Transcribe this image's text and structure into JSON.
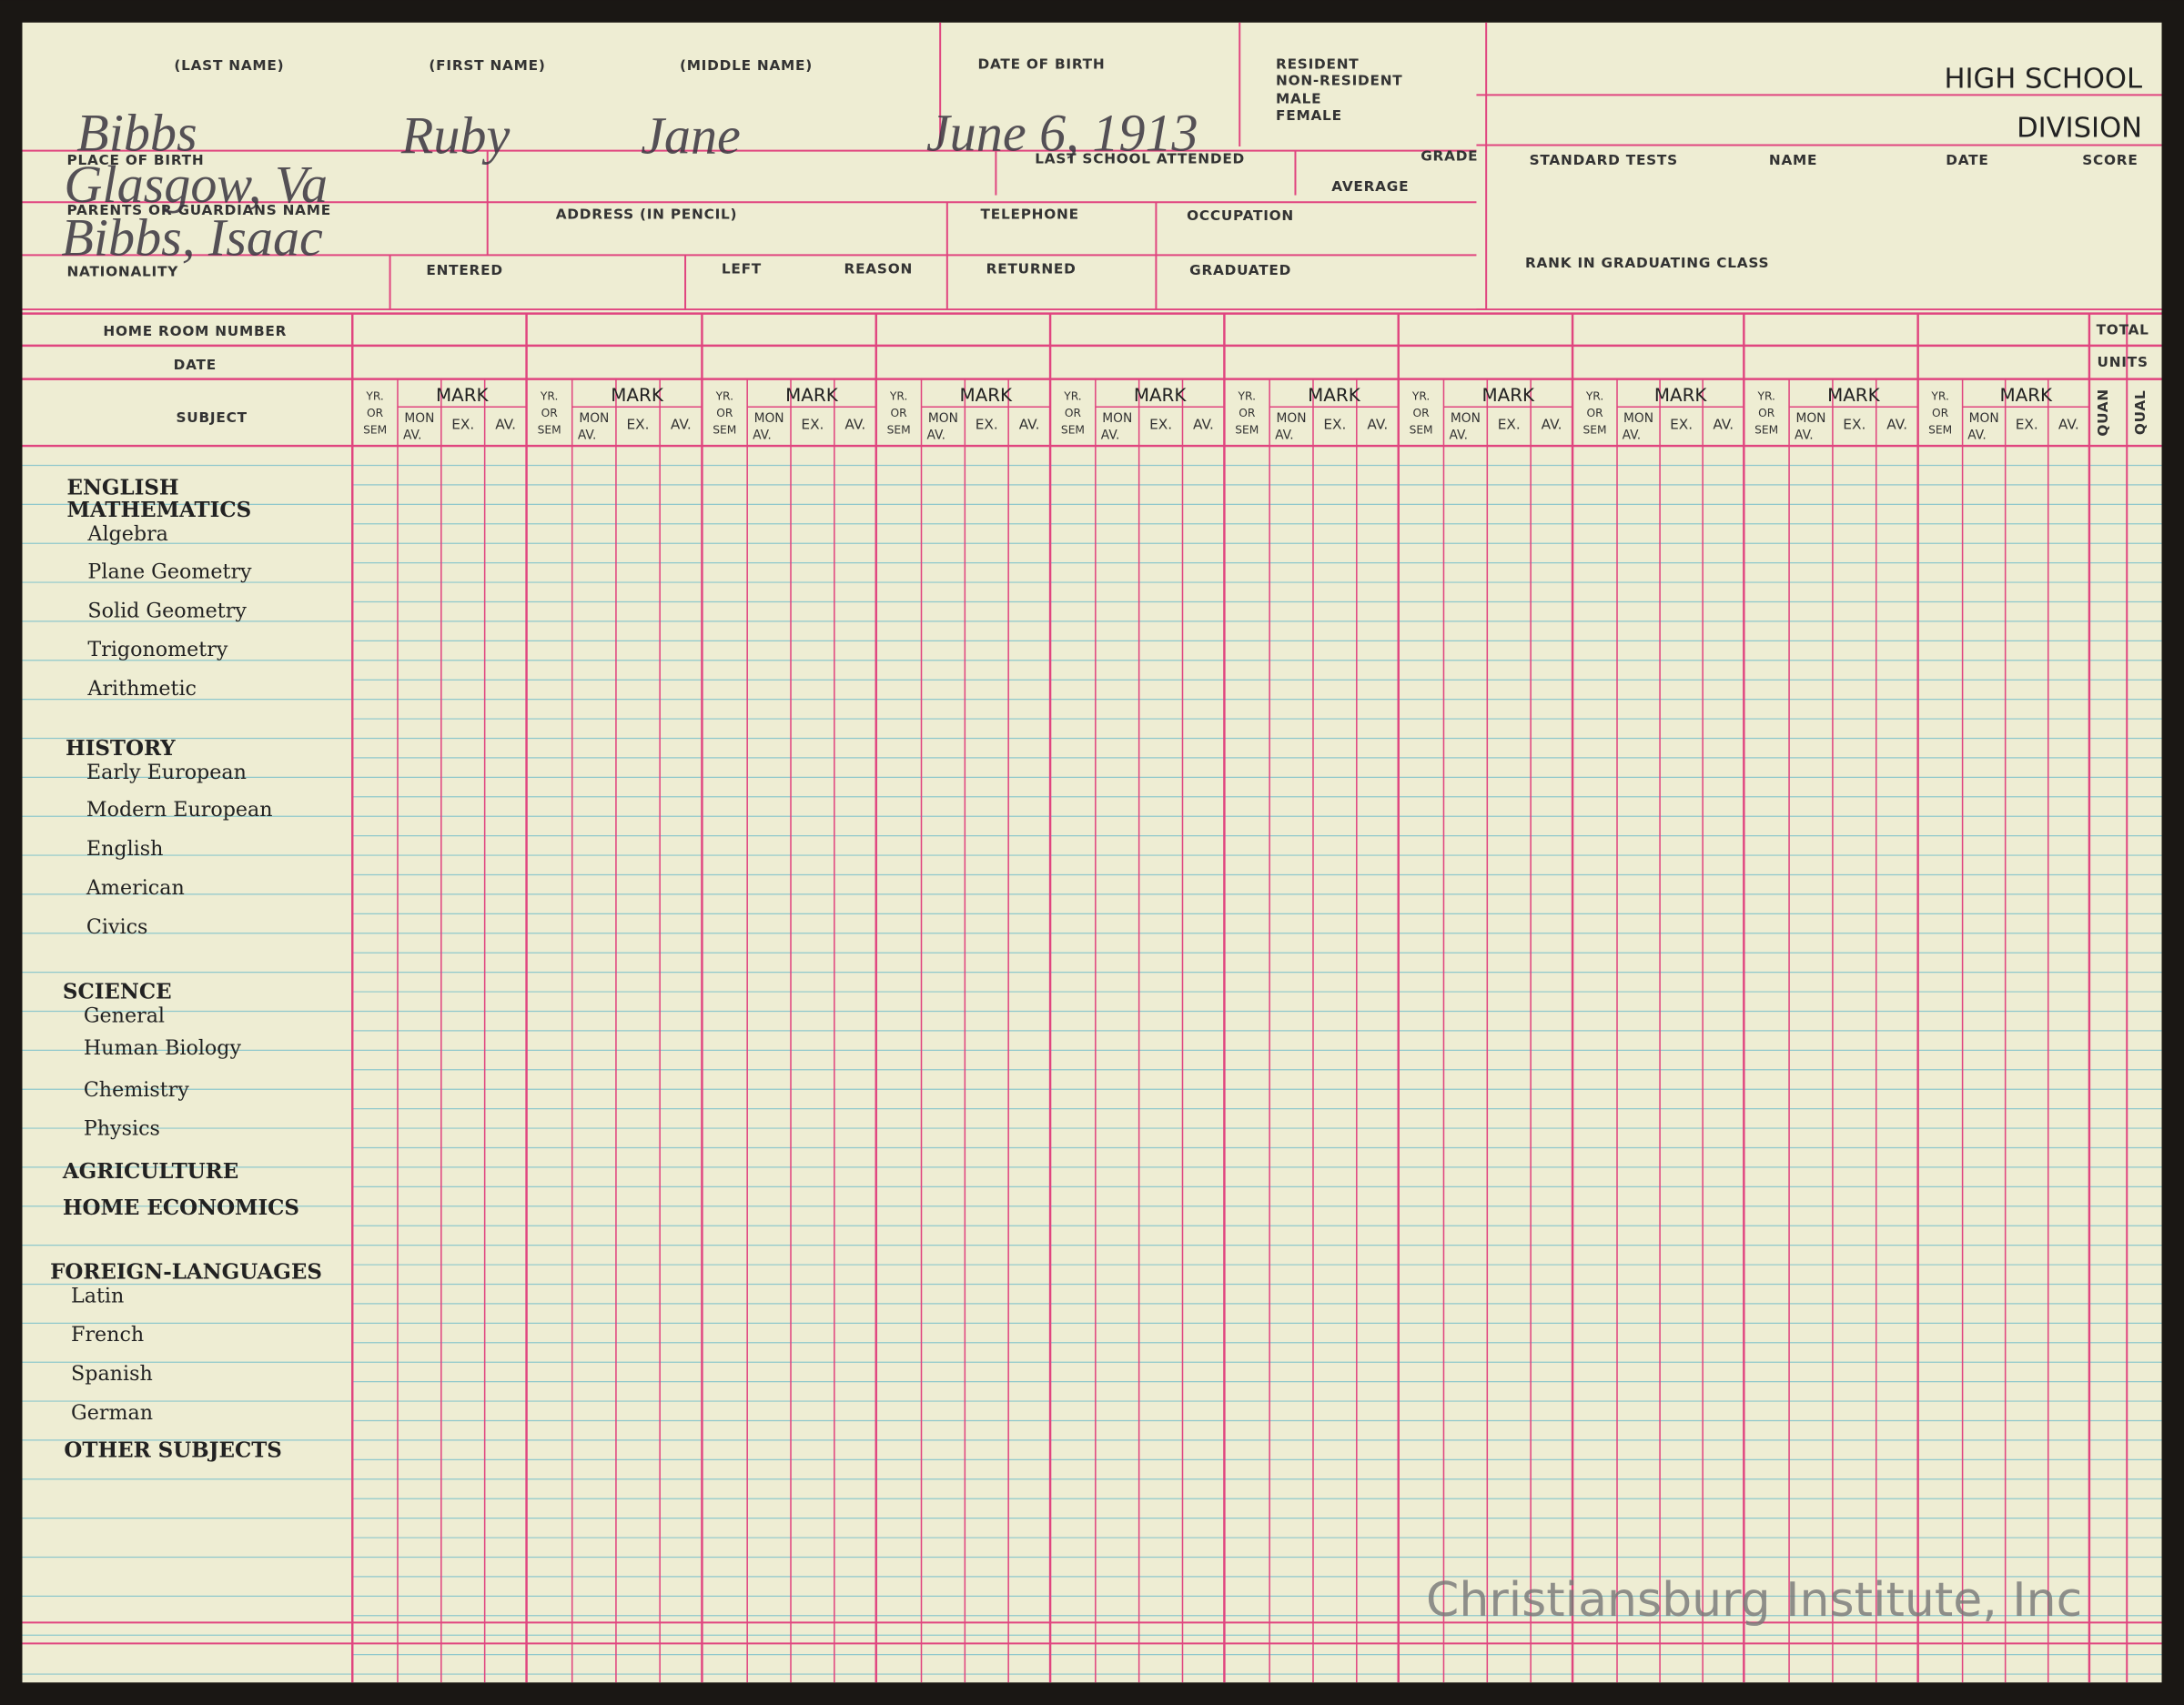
{
  "header": {
    "title1": "HIGH SCHOOL",
    "title2": "DIVISION"
  },
  "fields": [
    "(LAST NAME)",
    "(FIRST NAME)",
    "(MIDDLE NAME)",
    "DATE OF BIRTH",
    "RESIDENT",
    "NON-RESIDENT",
    "MALE",
    "FEMALE",
    "PLACE OF BIRTH",
    "LAST SCHOOL ATTENDED",
    "GRADE",
    "AVERAGE",
    "STANDARD TESTS",
    "NAME",
    "DATE",
    "SCORE",
    "PARENTS OR GUARDIANS NAME",
    "ADDRESS (IN PENCIL)",
    "TELEPHONE",
    "OCCUPATION",
    "NATIONALITY",
    "ENTERED",
    "LEFT",
    "REASON",
    "RETURNED",
    "GRADUATED",
    "RANK IN GRADUATING CLASS"
  ],
  "handwriting": [
    "Bibbs",
    "Ruby",
    "Jane",
    "June 6, 1913",
    "Glasgow, Va",
    "Bibbs, Isaac"
  ],
  "grid": {
    "home_room": "HOME ROOM NUMBER",
    "date": "DATE",
    "subject": "SUBJECT",
    "total": "TOTAL",
    "units": "UNITS",
    "quan": "QUAN",
    "qual": "QUAL",
    "yr": "YR.",
    "or": "OR",
    "sem": "SEM",
    "mark": "MARK",
    "mon": "MON",
    "av_short": "AV.",
    "ex": "EX.",
    "av": "AV."
  },
  "subjects": [
    {
      "heading": "ENGLISH",
      "items": []
    },
    {
      "heading": "MATHEMATICS",
      "items": [
        "Algebra",
        "Plane Geometry",
        "Solid Geometry",
        "Trigonometry",
        "Arithmetic"
      ]
    },
    {
      "heading": "HISTORY",
      "items": [
        "Early European",
        "Modern European",
        "English",
        "American",
        "Civics"
      ]
    },
    {
      "heading": "SCIENCE",
      "items": [
        "General",
        "Human Biology",
        "Chemistry",
        "Physics"
      ]
    },
    {
      "heading": "AGRICULTURE",
      "items": []
    },
    {
      "heading": "HOME ECONOMICS",
      "items": []
    },
    {
      "heading": "FOREIGN-LANGUAGES",
      "items": [
        "Latin",
        "French",
        "Spanish",
        "German"
      ]
    },
    {
      "heading": "OTHER SUBJECTS",
      "items": []
    }
  ],
  "watermark": "Christiansburg Institute, Inc"
}
